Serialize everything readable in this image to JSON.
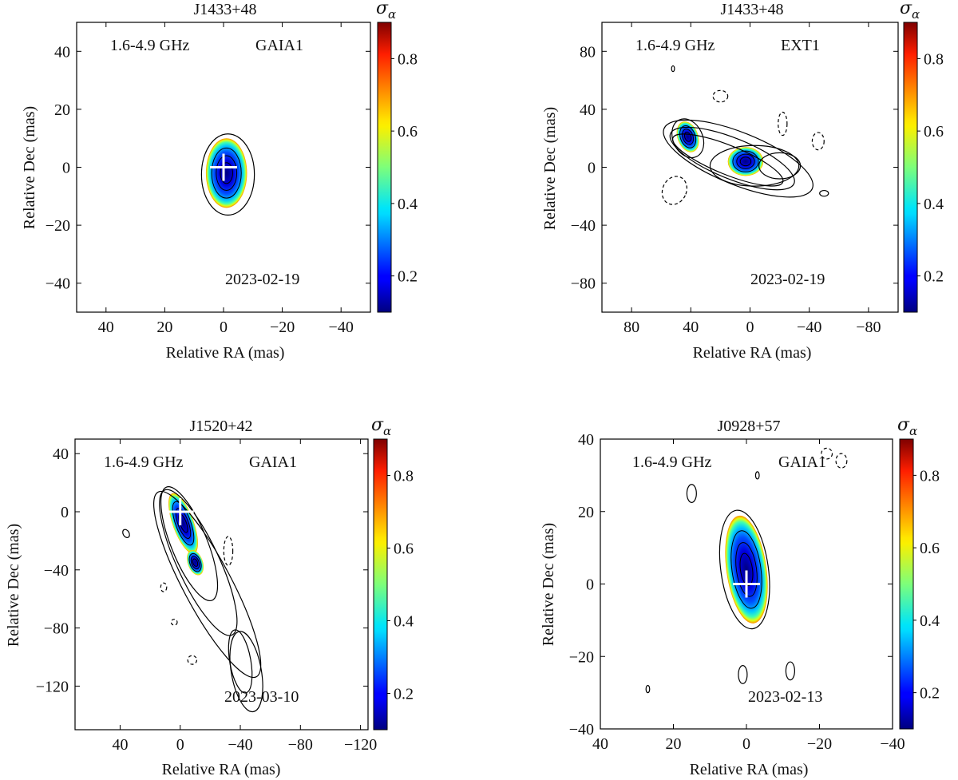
{
  "chart_data": [
    {
      "type": "heatmap",
      "title": "J1433+48",
      "xlabel": "Relative RA (mas)",
      "ylabel": "Relative Dec (mas)",
      "xlim": [
        50,
        -50
      ],
      "ylim": [
        -50,
        50
      ],
      "xticks": [
        40,
        20,
        0,
        -20,
        -40
      ],
      "yticks": [
        40,
        20,
        0,
        -20,
        -40
      ],
      "band": "1.6-4.9 GHz",
      "model": "GAIA1",
      "date": "2023-02-19",
      "colorbar": {
        "label": "σ",
        "subscript": "α",
        "range": [
          0.1,
          0.9
        ],
        "ticks": [
          0.2,
          0.4,
          0.6,
          0.8
        ]
      },
      "cross": {
        "ra": 0,
        "dec": 0
      },
      "components": [
        {
          "ra": -1,
          "dec": -2,
          "sx": 7,
          "sy": 12,
          "rot": 0
        }
      ],
      "contours": [
        {
          "ra": -1.5,
          "dec": -2.5,
          "sx": 9,
          "sy": 14,
          "rot": 0,
          "style": "solid"
        }
      ]
    },
    {
      "type": "heatmap",
      "title": "J1433+48",
      "xlabel": "Relative RA (mas)",
      "ylabel": "Relative Dec (mas)",
      "xlim": [
        100,
        -100
      ],
      "ylim": [
        -100,
        100
      ],
      "xticks": [
        80,
        40,
        0,
        -40,
        -80
      ],
      "yticks": [
        80,
        40,
        0,
        -40,
        -80
      ],
      "band": "1.6-4.9 GHz",
      "model": "EXT1",
      "date": "2023-02-19",
      "colorbar": {
        "label": "σ",
        "subscript": "α",
        "range": [
          0.1,
          0.9
        ],
        "ticks": [
          0.2,
          0.4,
          0.6,
          0.8
        ]
      },
      "components": [
        {
          "ra": 42,
          "dec": 21,
          "sx": 7,
          "sy": 11,
          "rot": -20
        },
        {
          "ra": 3,
          "dec": 4,
          "sx": 12,
          "sy": 10,
          "rot": 0
        }
      ],
      "contours": [
        {
          "ra": 15,
          "dec": 5,
          "sx": 40,
          "sy": 10,
          "rot": 22,
          "style": "solid"
        },
        {
          "ra": 12,
          "dec": 6,
          "sx": 45,
          "sy": 14,
          "rot": 22,
          "style": "solid"
        },
        {
          "ra": 8,
          "dec": 6,
          "sx": 54,
          "sy": 18,
          "rot": 22,
          "style": "solid"
        },
        {
          "ra": -3,
          "dec": 1,
          "sx": 30,
          "sy": 14,
          "rot": 0,
          "style": "solid"
        },
        {
          "ra": 42,
          "dec": 20,
          "sx": 10,
          "sy": 14,
          "rot": -25,
          "style": "solid"
        },
        {
          "ra": -20,
          "dec": 1,
          "sx": 14,
          "sy": 9,
          "rot": 0,
          "style": "solid"
        },
        {
          "ra": -50,
          "dec": -18,
          "sx": 3,
          "sy": 2,
          "rot": 0,
          "style": "solid"
        },
        {
          "ra": 52,
          "dec": 68,
          "sx": 1,
          "sy": 2,
          "rot": 0,
          "style": "solid"
        },
        {
          "ra": 20,
          "dec": 49,
          "sx": 5,
          "sy": 4,
          "rot": 0,
          "style": "dashed"
        },
        {
          "ra": -22,
          "dec": 30,
          "sx": 3,
          "sy": 8,
          "rot": 0,
          "style": "dashed"
        },
        {
          "ra": -46,
          "dec": 18,
          "sx": 4,
          "sy": 6,
          "rot": 0,
          "style": "dashed"
        },
        {
          "ra": 51,
          "dec": -16,
          "sx": 8,
          "sy": 10,
          "rot": 25,
          "style": "dashed"
        }
      ]
    },
    {
      "type": "heatmap",
      "title": "J1520+42",
      "xlabel": "Relative RA (mas)",
      "ylabel": "Relative Dec (mas)",
      "xlim": [
        70,
        -125
      ],
      "ylim": [
        -150,
        50
      ],
      "xticks": [
        40,
        0,
        -40,
        -80,
        -120
      ],
      "yticks": [
        40,
        0,
        -40,
        -80,
        -120
      ],
      "band": "1.6-4.9 GHz",
      "model": "GAIA1",
      "date": "2023-03-10",
      "colorbar": {
        "label": "σ",
        "subscript": "α",
        "range": [
          0.1,
          0.9
        ],
        "ticks": [
          0.2,
          0.4,
          0.6,
          0.8
        ]
      },
      "cross": {
        "ra": 0,
        "dec": 0
      },
      "components": [
        {
          "ra": -2,
          "dec": -8,
          "sx": 7,
          "sy": 22,
          "rot": -20
        },
        {
          "ra": -10,
          "dec": -35,
          "sx": 5,
          "sy": 9,
          "rot": -20
        }
      ],
      "contours": [
        {
          "ra": -6,
          "dec": -22,
          "sx": 12,
          "sy": 42,
          "rot": -22,
          "style": "solid"
        },
        {
          "ra": -12,
          "dec": -35,
          "sx": 14,
          "sy": 55,
          "rot": -25,
          "style": "solid"
        },
        {
          "ra": -18,
          "dec": -50,
          "sx": 16,
          "sy": 72,
          "rot": -28,
          "style": "solid"
        },
        {
          "ra": -40,
          "dec": -103,
          "sx": 7,
          "sy": 22,
          "rot": -10,
          "style": "solid"
        },
        {
          "ra": -44,
          "dec": -110,
          "sx": 10,
          "sy": 28,
          "rot": -10,
          "style": "solid"
        },
        {
          "ra": 36,
          "dec": -15,
          "sx": 2,
          "sy": 3,
          "rot": -30,
          "style": "solid"
        },
        {
          "ra": -32,
          "dec": -27,
          "sx": 3,
          "sy": 10,
          "rot": 0,
          "style": "dashed"
        },
        {
          "ra": 11,
          "dec": -52,
          "sx": 2,
          "sy": 3,
          "rot": 0,
          "style": "dashed"
        },
        {
          "ra": 4,
          "dec": -76,
          "sx": 2,
          "sy": 2,
          "rot": 0,
          "style": "dashed"
        },
        {
          "ra": -8,
          "dec": -102,
          "sx": 3,
          "sy": 3,
          "rot": 0,
          "style": "dashed"
        }
      ]
    },
    {
      "type": "heatmap",
      "title": "J0928+57",
      "xlabel": "Relative RA (mas)",
      "ylabel": "Relative Dec (mas)",
      "xlim": [
        40,
        -40
      ],
      "ylim": [
        -40,
        40
      ],
      "xticks": [
        40,
        20,
        0,
        -20,
        -40
      ],
      "yticks": [
        40,
        20,
        0,
        -20,
        -40
      ],
      "band": "1.6-4.9 GHz",
      "model": "GAIA1",
      "date": "2023-02-13",
      "colorbar": {
        "label": "σ",
        "subscript": "α",
        "range": [
          0.1,
          0.9
        ],
        "ticks": [
          0.2,
          0.4,
          0.6,
          0.8
        ]
      },
      "cross": {
        "ra": 0,
        "dec": 0
      },
      "components": [
        {
          "ra": 0,
          "dec": 4,
          "sx": 5.5,
          "sy": 15,
          "rot": -8
        }
      ],
      "contours": [
        {
          "ra": 0.5,
          "dec": 4,
          "sx": 6.5,
          "sy": 16.5,
          "rot": -8,
          "style": "solid"
        },
        {
          "ra": 15,
          "dec": 25,
          "sx": 1.3,
          "sy": 2.5,
          "rot": 0,
          "style": "solid"
        },
        {
          "ra": -3,
          "dec": 30,
          "sx": 0.5,
          "sy": 1,
          "rot": 0,
          "style": "solid"
        },
        {
          "ra": 1,
          "dec": -25,
          "sx": 1.2,
          "sy": 2.5,
          "rot": 0,
          "style": "solid"
        },
        {
          "ra": -12,
          "dec": -24,
          "sx": 1.2,
          "sy": 2.5,
          "rot": 0,
          "style": "solid"
        },
        {
          "ra": 27,
          "dec": -29,
          "sx": 0.5,
          "sy": 1,
          "rot": 0,
          "style": "solid"
        },
        {
          "ra": -22,
          "dec": 36,
          "sx": 1.5,
          "sy": 1.5,
          "rot": 0,
          "style": "dashed"
        },
        {
          "ra": -26,
          "dec": 34,
          "sx": 1.5,
          "sy": 2,
          "rot": 0,
          "style": "dashed"
        }
      ]
    }
  ]
}
